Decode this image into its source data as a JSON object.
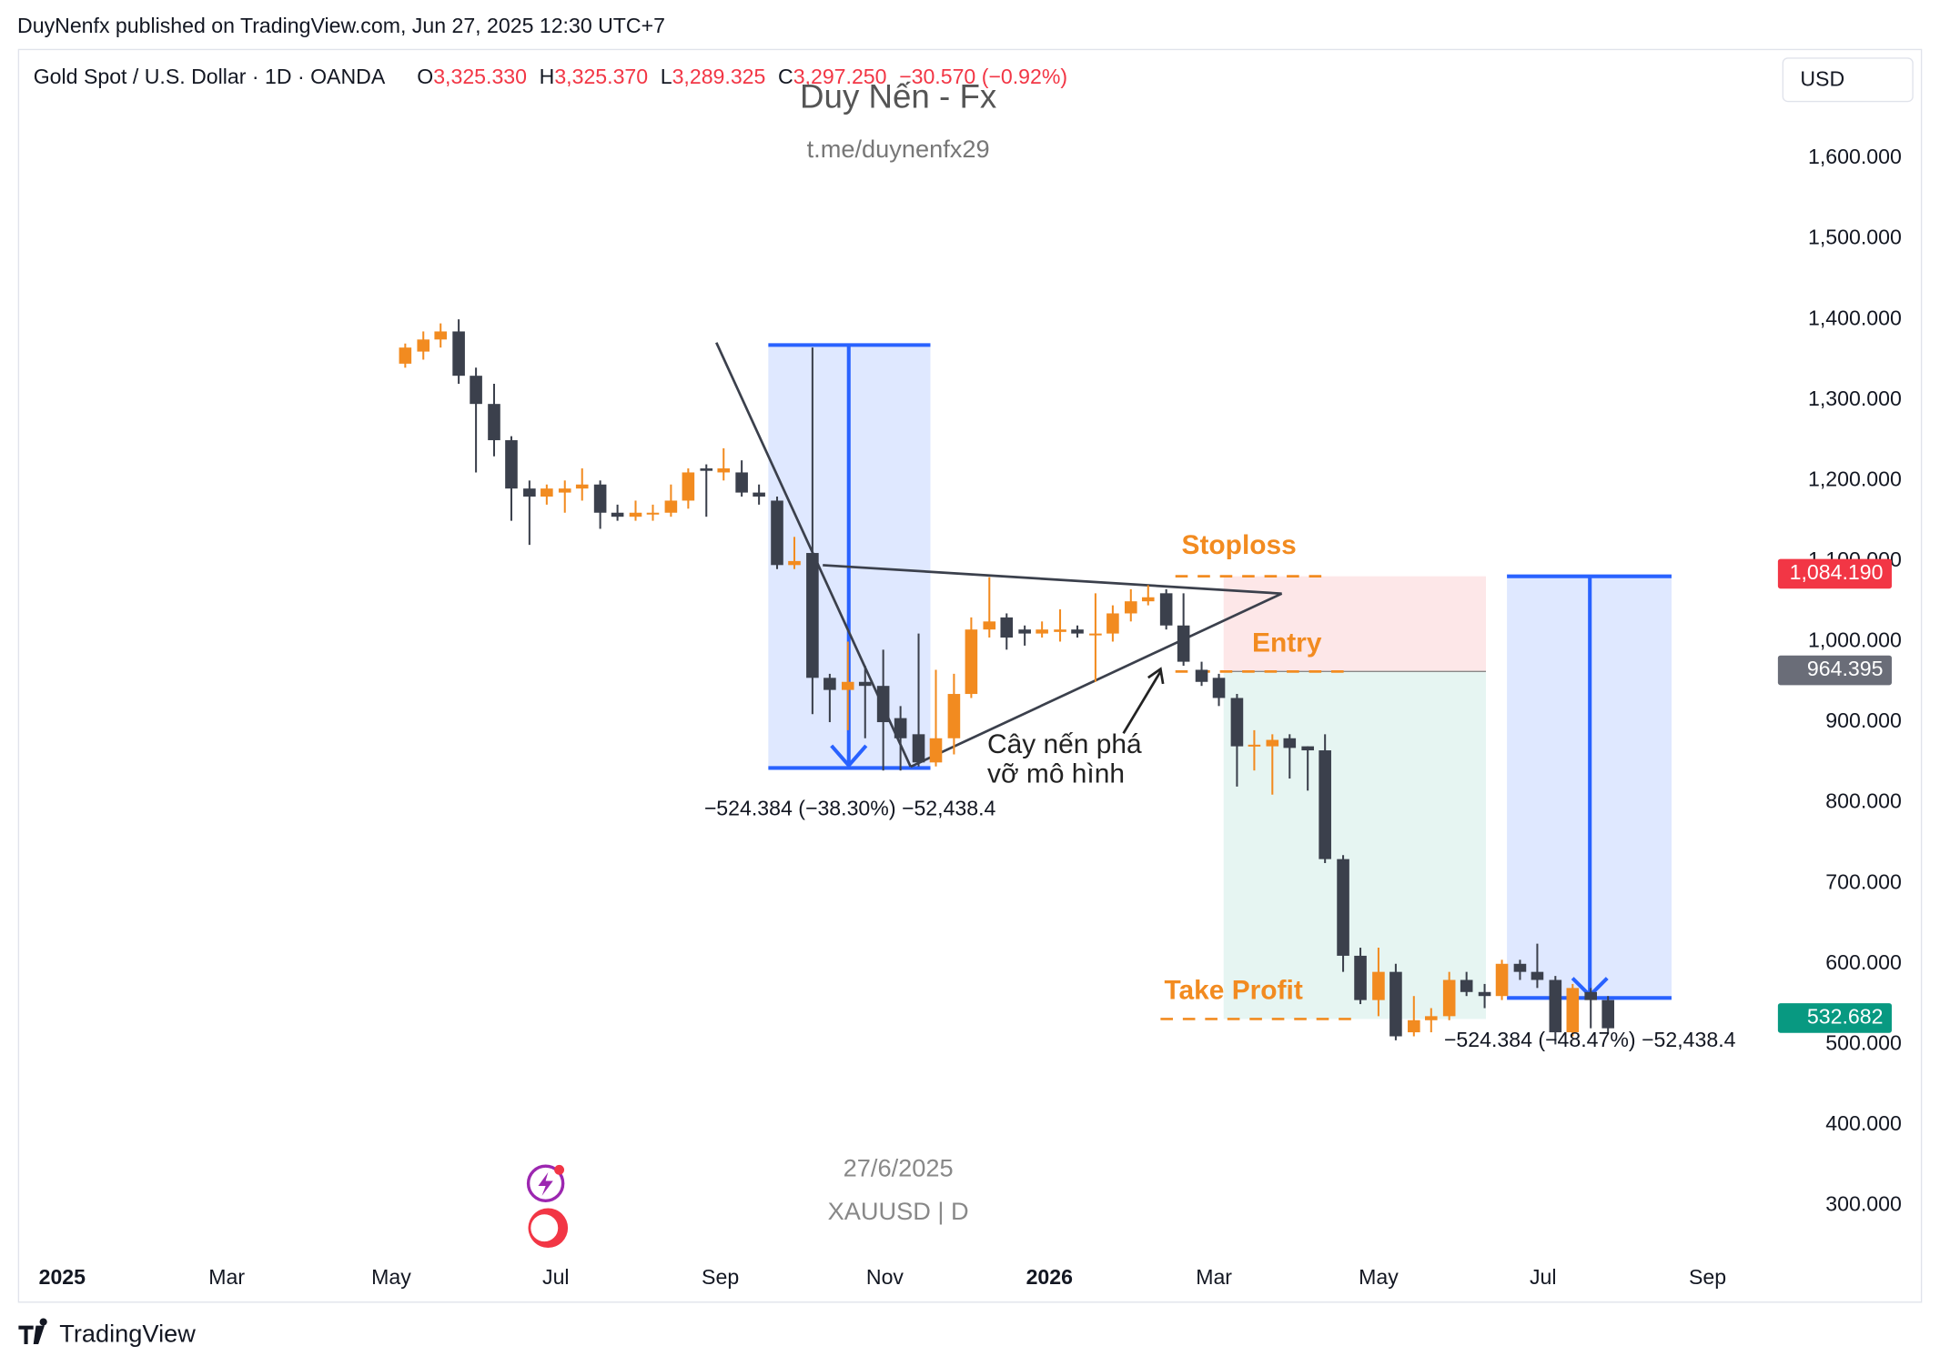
{
  "header": {
    "published": "DuyNenfx published on TradingView.com, Jun 27, 2025 12:30 UTC+7",
    "symbol": "Gold Spot / U.S. Dollar · 1D · OANDA",
    "ohlc": [
      {
        "key": "O",
        "value": "3,325.330"
      },
      {
        "key": "H",
        "value": "3,325.370"
      },
      {
        "key": "L",
        "value": "3,289.325"
      },
      {
        "key": "C",
        "value": "3,297.250"
      }
    ],
    "change": "−30.570 (−0.92%)",
    "currency": "USD"
  },
  "watermark": {
    "title": "Duy Nến - Fx",
    "link": "t.me/duynenfx29",
    "date": "27/6/2025",
    "symbol": "XAUUSD | D"
  },
  "annotations": {
    "stoploss": "Stoploss",
    "entry": "Entry",
    "take_profit": "Take Profit",
    "breakout_1": "Cây nến phá",
    "breakout_2": "vỡ mô hình",
    "measure_1": "−524.384 (−38.30%) −52,438.4",
    "measure_2": "−524.384 (−48.47%) −52,438.4"
  },
  "footer": {
    "brand": "TradingView"
  },
  "chart_data": {
    "type": "candlestick",
    "up_color": "#f28b20",
    "down_color": "#3b404c",
    "xlim": [
      -0.53,
      20.9
    ],
    "ylim": [
      180,
      1735
    ],
    "xticks": [
      {
        "value": 0,
        "label": "2025"
      },
      {
        "value": 2,
        "label": "Mar"
      },
      {
        "value": 4,
        "label": "May"
      },
      {
        "value": 6,
        "label": "Jul"
      },
      {
        "value": 8,
        "label": "Sep"
      },
      {
        "value": 10,
        "label": "Nov"
      },
      {
        "value": 12,
        "label": "2026"
      },
      {
        "value": 14,
        "label": "Mar"
      },
      {
        "value": 16,
        "label": "May"
      },
      {
        "value": 18,
        "label": "Jul"
      },
      {
        "value": 20,
        "label": "Sep"
      }
    ],
    "yticks": [
      {
        "value": 300,
        "label": "300.000"
      },
      {
        "value": 400,
        "label": "400.000"
      },
      {
        "value": 500,
        "label": "500.000"
      },
      {
        "value": 600,
        "label": "600.000"
      },
      {
        "value": 700,
        "label": "700.000"
      },
      {
        "value": 800,
        "label": "800.000"
      },
      {
        "value": 900,
        "label": "900.000"
      },
      {
        "value": 1000,
        "label": "1,000.000"
      },
      {
        "value": 1100,
        "label": "1,100.000"
      },
      {
        "value": 1200,
        "label": "1,200.000"
      },
      {
        "value": 1300,
        "label": "1,300.000"
      },
      {
        "value": 1400,
        "label": "1,400.000"
      },
      {
        "value": 1500,
        "label": "1,500.000"
      },
      {
        "value": 1600,
        "label": "1,600.000"
      }
    ],
    "price_tags": [
      {
        "value": 1084.19,
        "label": "1,084.190",
        "color": "#f23645"
      },
      {
        "value": 964.395,
        "label": "964.395",
        "color": "#6a6d78"
      },
      {
        "value": 532.682,
        "label": "532.682",
        "color": "#089981"
      }
    ],
    "x": [
      4.17,
      4.39,
      4.6,
      4.82,
      5.03,
      5.25,
      5.46,
      5.68,
      5.89,
      6.11,
      6.32,
      6.54,
      6.75,
      6.97,
      7.18,
      7.4,
      7.61,
      7.83,
      8.04,
      8.26,
      8.47,
      8.69,
      8.9,
      9.12,
      9.33,
      9.55,
      9.76,
      9.98,
      10.19,
      10.41,
      10.62,
      10.84,
      11.05,
      11.27,
      11.48,
      11.7,
      11.91,
      12.13,
      12.34,
      12.56,
      12.77,
      12.99,
      13.2,
      13.42,
      13.63,
      13.85,
      14.06,
      14.28,
      14.49,
      14.71,
      14.92,
      15.14,
      15.35,
      15.57,
      15.78,
      16,
      16.21,
      16.43,
      16.64,
      16.86,
      17.07,
      17.29,
      17.5,
      17.72,
      17.93,
      18.15,
      18.36,
      18.58,
      18.79
    ],
    "open": [
      1345,
      1360,
      1375,
      1385,
      1330,
      1295,
      1250,
      1190,
      1180,
      1185,
      1190,
      1195,
      1160,
      1155,
      1158,
      1160,
      1175,
      1215,
      1210,
      1210,
      1185,
      1175,
      1095,
      1110,
      955,
      940,
      950,
      945,
      905,
      885,
      850,
      880,
      935,
      1015,
      1030,
      1015,
      1010,
      1012,
      1015,
      1008,
      1010,
      1035,
      1050,
      1060,
      1020,
      965,
      955,
      930,
      870,
      870,
      880,
      870,
      865,
      730,
      610,
      555,
      590,
      515,
      530,
      535,
      580,
      565,
      560,
      600,
      590,
      580,
      515,
      565,
      555
    ],
    "high": [
      1370,
      1385,
      1395,
      1400,
      1340,
      1320,
      1255,
      1200,
      1195,
      1200,
      1215,
      1200,
      1170,
      1175,
      1170,
      1195,
      1215,
      1220,
      1240,
      1225,
      1195,
      1180,
      1130,
      1365,
      960,
      1000,
      970,
      990,
      920,
      1010,
      965,
      960,
      1030,
      1080,
      1035,
      1020,
      1025,
      1040,
      1020,
      1060,
      1045,
      1065,
      1070,
      1065,
      1060,
      975,
      960,
      935,
      890,
      885,
      885,
      870,
      885,
      735,
      620,
      620,
      600,
      560,
      545,
      590,
      590,
      575,
      605,
      605,
      625,
      585,
      575,
      570,
      560
    ],
    "low": [
      1340,
      1350,
      1365,
      1320,
      1210,
      1230,
      1150,
      1120,
      1170,
      1160,
      1175,
      1140,
      1150,
      1150,
      1150,
      1155,
      1165,
      1155,
      1200,
      1180,
      1170,
      1090,
      1090,
      910,
      900,
      890,
      880,
      840,
      840,
      845,
      845,
      860,
      930,
      1005,
      990,
      995,
      1005,
      1000,
      1005,
      950,
      1000,
      1025,
      1045,
      1015,
      970,
      945,
      920,
      820,
      840,
      810,
      830,
      815,
      725,
      590,
      550,
      535,
      505,
      510,
      515,
      530,
      560,
      545,
      555,
      580,
      570,
      500,
      510,
      520,
      515
    ],
    "close": [
      1365,
      1375,
      1385,
      1330,
      1295,
      1250,
      1190,
      1180,
      1190,
      1190,
      1195,
      1160,
      1155,
      1160,
      1160,
      1175,
      1210,
      1212,
      1215,
      1185,
      1180,
      1095,
      1100,
      955,
      940,
      950,
      945,
      900,
      880,
      850,
      880,
      935,
      1015,
      1025,
      1005,
      1010,
      1015,
      1015,
      1010,
      1010,
      1035,
      1050,
      1055,
      1020,
      975,
      950,
      930,
      870,
      872,
      878,
      868,
      865,
      730,
      610,
      555,
      590,
      510,
      530,
      535,
      580,
      565,
      560,
      600,
      590,
      580,
      515,
      570,
      555,
      520
    ]
  }
}
